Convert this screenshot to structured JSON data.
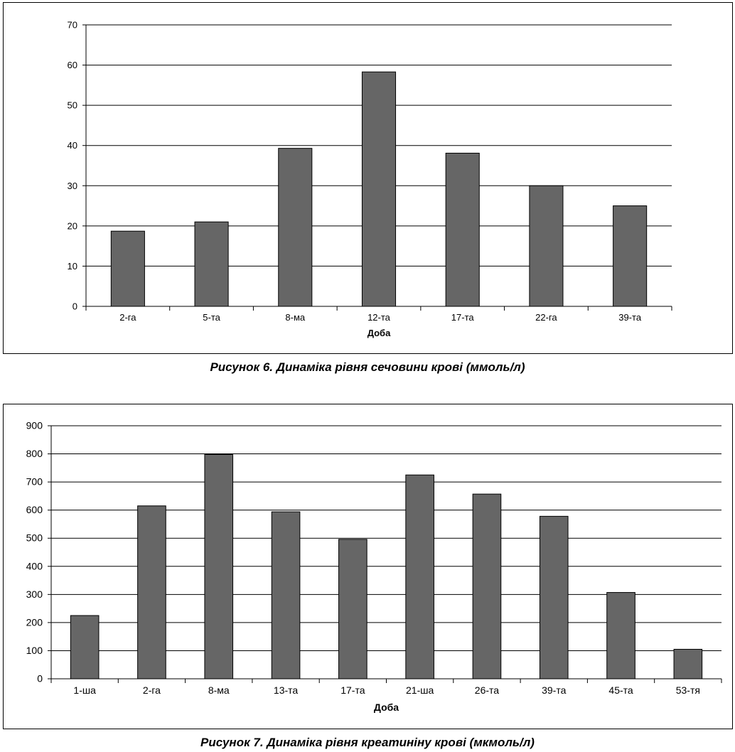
{
  "figures": [
    {
      "caption": "Рисунок 6. Динаміка рівня сечовини крові (ммоль/л)"
    },
    {
      "caption": "Рисунок 7. Динаміка рівня креатиніну крові (мкмоль/л)"
    }
  ],
  "chart_data": [
    {
      "type": "bar",
      "title": "",
      "xlabel": "Доба",
      "ylabel": "",
      "categories": [
        "2-га",
        "5-та",
        "8-ма",
        "12-та",
        "17-та",
        "22-га",
        "39-та"
      ],
      "values": [
        18.7,
        21,
        39.3,
        58.3,
        38.1,
        30,
        25
      ],
      "ylim": [
        0,
        70
      ],
      "yticks": [
        0,
        10,
        20,
        30,
        40,
        50,
        60,
        70
      ],
      "grid": true,
      "legend": "none",
      "bar_color": "#666666"
    },
    {
      "type": "bar",
      "title": "",
      "xlabel": "Доба",
      "ylabel": "",
      "categories": [
        "1-ша",
        "2-га",
        "8-ма",
        "13-та",
        "17-та",
        "21-ша",
        "26-та",
        "39-та",
        "45-та",
        "53-тя"
      ],
      "values": [
        225,
        615,
        798,
        594,
        496,
        725,
        657,
        578,
        307,
        105
      ],
      "ylim": [
        0,
        900
      ],
      "yticks": [
        0,
        100,
        200,
        300,
        400,
        500,
        600,
        700,
        800,
        900
      ],
      "grid": true,
      "legend": "none",
      "bar_color": "#666666"
    }
  ]
}
